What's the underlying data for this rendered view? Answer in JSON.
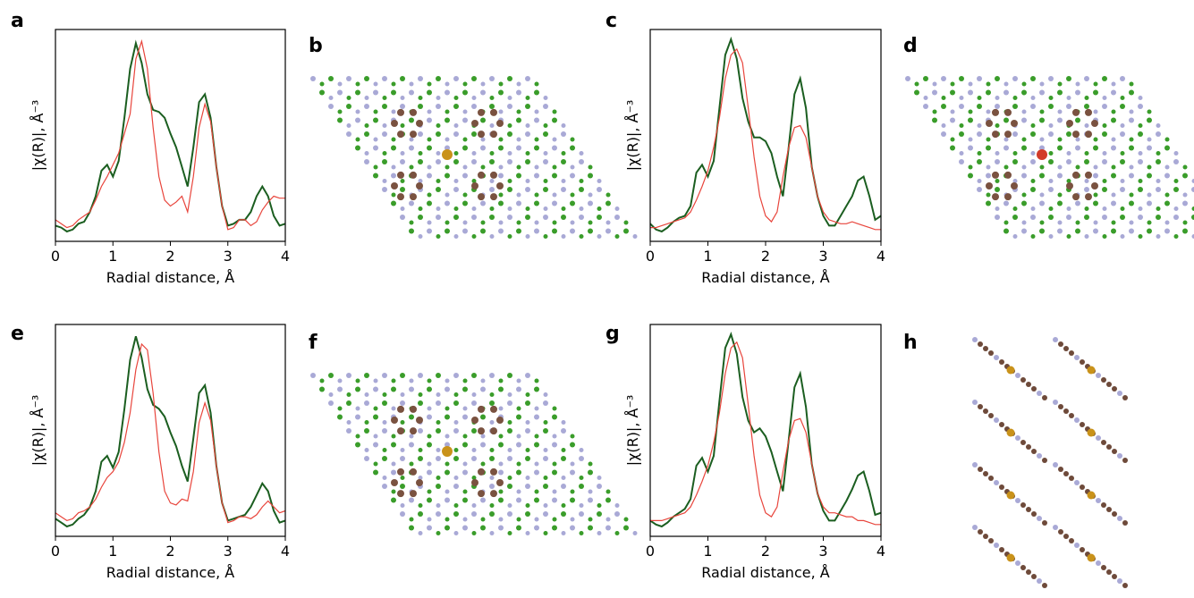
{
  "chart_data": [
    {
      "type": "line",
      "panel": "a",
      "xlabel": "Radial distance, Å",
      "ylabel": "|χ(R)|, Å⁻³",
      "x": [
        0,
        0.1,
        0.2,
        0.3,
        0.4,
        0.5,
        0.6,
        0.7,
        0.8,
        0.9,
        1.0,
        1.1,
        1.2,
        1.3,
        1.4,
        1.5,
        1.6,
        1.7,
        1.8,
        1.9,
        2.0,
        2.1,
        2.2,
        2.3,
        2.4,
        2.5,
        2.6,
        2.7,
        2.8,
        2.9,
        3.0,
        3.1,
        3.2,
        3.3,
        3.4,
        3.5,
        3.6,
        3.7,
        3.8,
        3.9,
        4.0
      ],
      "xlim": [
        0,
        4
      ],
      "xticks": [
        0,
        1,
        2,
        3,
        4
      ],
      "ylim": [
        -0.03,
        1.05
      ],
      "series": [
        {
          "color": "#1b5e20",
          "values": [
            0.05,
            0.04,
            0.02,
            0.03,
            0.06,
            0.07,
            0.12,
            0.2,
            0.33,
            0.36,
            0.3,
            0.38,
            0.6,
            0.85,
            0.98,
            0.88,
            0.72,
            0.64,
            0.63,
            0.6,
            0.52,
            0.45,
            0.35,
            0.25,
            0.45,
            0.68,
            0.72,
            0.6,
            0.35,
            0.15,
            0.05,
            0.06,
            0.08,
            0.08,
            0.12,
            0.2,
            0.25,
            0.2,
            0.1,
            0.05,
            0.06
          ]
        },
        {
          "color": "#e8453c",
          "values": [
            0.08,
            0.06,
            0.04,
            0.05,
            0.08,
            0.1,
            0.12,
            0.18,
            0.25,
            0.3,
            0.36,
            0.42,
            0.52,
            0.62,
            0.9,
            0.99,
            0.85,
            0.55,
            0.3,
            0.18,
            0.15,
            0.17,
            0.2,
            0.12,
            0.3,
            0.55,
            0.67,
            0.58,
            0.35,
            0.15,
            0.03,
            0.04,
            0.08,
            0.08,
            0.05,
            0.07,
            0.13,
            0.17,
            0.2,
            0.19,
            0.19
          ]
        }
      ]
    },
    {
      "type": "line",
      "panel": "c",
      "xlabel": "Radial distance, Å",
      "ylabel": "|χ(R)|, Å⁻³",
      "x": [
        0,
        0.1,
        0.2,
        0.3,
        0.4,
        0.5,
        0.6,
        0.7,
        0.8,
        0.9,
        1.0,
        1.1,
        1.2,
        1.3,
        1.4,
        1.5,
        1.6,
        1.7,
        1.8,
        1.9,
        2.0,
        2.1,
        2.2,
        2.3,
        2.4,
        2.5,
        2.6,
        2.7,
        2.8,
        2.9,
        3.0,
        3.1,
        3.2,
        3.3,
        3.4,
        3.5,
        3.6,
        3.7,
        3.8,
        3.9,
        4.0
      ],
      "xlim": [
        0,
        4
      ],
      "xticks": [
        0,
        1,
        2,
        3,
        4
      ],
      "ylim": [
        -0.03,
        1.05
      ],
      "series": [
        {
          "color": "#1b5e20",
          "values": [
            0.06,
            0.03,
            0.02,
            0.04,
            0.07,
            0.09,
            0.1,
            0.15,
            0.32,
            0.36,
            0.3,
            0.38,
            0.65,
            0.92,
            1.0,
            0.9,
            0.7,
            0.58,
            0.5,
            0.5,
            0.48,
            0.42,
            0.3,
            0.2,
            0.45,
            0.72,
            0.8,
            0.65,
            0.35,
            0.2,
            0.1,
            0.05,
            0.05,
            0.1,
            0.15,
            0.2,
            0.28,
            0.3,
            0.2,
            0.08,
            0.1
          ]
        },
        {
          "color": "#e8453c",
          "values": [
            0.04,
            0.04,
            0.05,
            0.06,
            0.07,
            0.08,
            0.09,
            0.12,
            0.18,
            0.25,
            0.33,
            0.45,
            0.6,
            0.8,
            0.92,
            0.95,
            0.88,
            0.65,
            0.4,
            0.2,
            0.1,
            0.07,
            0.12,
            0.3,
            0.45,
            0.55,
            0.56,
            0.5,
            0.35,
            0.2,
            0.12,
            0.08,
            0.07,
            0.06,
            0.06,
            0.07,
            0.06,
            0.05,
            0.04,
            0.03,
            0.03
          ]
        }
      ]
    },
    {
      "type": "line",
      "panel": "e",
      "xlabel": "Radial distance, Å",
      "ylabel": "|χ(R)|, Å⁻³",
      "x": [
        0,
        0.1,
        0.2,
        0.3,
        0.4,
        0.5,
        0.6,
        0.7,
        0.8,
        0.9,
        1.0,
        1.1,
        1.2,
        1.3,
        1.4,
        1.5,
        1.6,
        1.7,
        1.8,
        1.9,
        2.0,
        2.1,
        2.2,
        2.3,
        2.4,
        2.5,
        2.6,
        2.7,
        2.8,
        2.9,
        3.0,
        3.1,
        3.2,
        3.3,
        3.4,
        3.5,
        3.6,
        3.7,
        3.8,
        3.9,
        4.0
      ],
      "xlim": [
        0,
        4
      ],
      "xticks": [
        0,
        1,
        2,
        3,
        4
      ],
      "ylim": [
        -0.03,
        1.05
      ],
      "series": [
        {
          "color": "#1b5e20",
          "values": [
            0.06,
            0.04,
            0.02,
            0.03,
            0.06,
            0.08,
            0.12,
            0.2,
            0.35,
            0.38,
            0.32,
            0.4,
            0.62,
            0.87,
            0.99,
            0.88,
            0.72,
            0.64,
            0.62,
            0.58,
            0.5,
            0.43,
            0.33,
            0.25,
            0.47,
            0.7,
            0.74,
            0.6,
            0.33,
            0.14,
            0.05,
            0.06,
            0.07,
            0.08,
            0.12,
            0.18,
            0.24,
            0.2,
            0.1,
            0.04,
            0.05
          ]
        },
        {
          "color": "#e8453c",
          "values": [
            0.09,
            0.07,
            0.05,
            0.06,
            0.09,
            0.1,
            0.12,
            0.16,
            0.22,
            0.27,
            0.3,
            0.35,
            0.45,
            0.6,
            0.82,
            0.95,
            0.92,
            0.7,
            0.4,
            0.2,
            0.14,
            0.13,
            0.16,
            0.15,
            0.3,
            0.55,
            0.65,
            0.56,
            0.33,
            0.14,
            0.04,
            0.05,
            0.07,
            0.07,
            0.06,
            0.08,
            0.12,
            0.15,
            0.12,
            0.09,
            0.1
          ]
        }
      ]
    },
    {
      "type": "line",
      "panel": "g",
      "xlabel": "Radial distance, Å",
      "ylabel": "|χ(R)|, Å⁻³",
      "x": [
        0,
        0.1,
        0.2,
        0.3,
        0.4,
        0.5,
        0.6,
        0.7,
        0.8,
        0.9,
        1.0,
        1.1,
        1.2,
        1.3,
        1.4,
        1.5,
        1.6,
        1.7,
        1.8,
        1.9,
        2.0,
        2.1,
        2.2,
        2.3,
        2.4,
        2.5,
        2.6,
        2.7,
        2.8,
        2.9,
        3.0,
        3.1,
        3.2,
        3.3,
        3.4,
        3.5,
        3.6,
        3.7,
        3.8,
        3.9,
        4.0
      ],
      "xlim": [
        0,
        4
      ],
      "xticks": [
        0,
        1,
        2,
        3,
        4
      ],
      "ylim": [
        -0.03,
        1.05
      ],
      "series": [
        {
          "color": "#1b5e20",
          "values": [
            0.05,
            0.03,
            0.02,
            0.04,
            0.07,
            0.09,
            0.11,
            0.16,
            0.33,
            0.37,
            0.3,
            0.38,
            0.66,
            0.93,
            1.0,
            0.9,
            0.68,
            0.56,
            0.5,
            0.52,
            0.48,
            0.4,
            0.3,
            0.2,
            0.46,
            0.73,
            0.8,
            0.63,
            0.34,
            0.19,
            0.1,
            0.05,
            0.05,
            0.1,
            0.15,
            0.21,
            0.28,
            0.3,
            0.2,
            0.08,
            0.09
          ]
        },
        {
          "color": "#e8453c",
          "values": [
            0.05,
            0.05,
            0.05,
            0.06,
            0.07,
            0.08,
            0.09,
            0.12,
            0.18,
            0.25,
            0.33,
            0.45,
            0.6,
            0.8,
            0.93,
            0.96,
            0.88,
            0.64,
            0.38,
            0.18,
            0.09,
            0.07,
            0.12,
            0.3,
            0.46,
            0.56,
            0.57,
            0.5,
            0.34,
            0.19,
            0.12,
            0.09,
            0.09,
            0.08,
            0.07,
            0.07,
            0.05,
            0.05,
            0.04,
            0.03,
            0.03
          ]
        }
      ]
    }
  ],
  "structures": [
    {
      "panel": "b"
    },
    {
      "panel": "d"
    },
    {
      "panel": "f"
    },
    {
      "panel": "h"
    }
  ]
}
